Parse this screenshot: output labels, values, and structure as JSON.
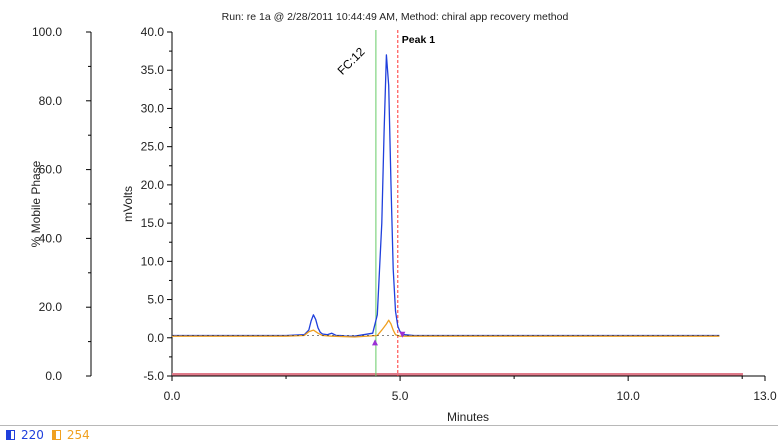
{
  "chart_data": {
    "type": "line",
    "title": "Run: re 1a @ 2/28/2011 10:44:49 AM, Method: chiral app recovery method",
    "xlabel": "Minutes",
    "ylabel": "mVolts",
    "y2label": "% Mobile Phase",
    "xlim": [
      0.0,
      13.0
    ],
    "ylim": [
      -5.0,
      40.0
    ],
    "y2lim": [
      0.0,
      100.0
    ],
    "x_ticks": [
      "0.0",
      "5.0",
      "10.0",
      "13.0"
    ],
    "y_ticks": [
      "-5.0",
      "0.0",
      "5.0",
      "10.0",
      "15.0",
      "20.0",
      "25.0",
      "30.0",
      "35.0",
      "40.0"
    ],
    "y2_ticks": [
      "0.0",
      "20.0",
      "40.0",
      "60.0",
      "80.0",
      "100.0"
    ],
    "series": [
      {
        "name": "220",
        "color": "#1f3fdc",
        "x": [
          0.0,
          1.5,
          2.5,
          2.9,
          3.0,
          3.05,
          3.1,
          3.15,
          3.2,
          3.25,
          3.3,
          3.4,
          3.5,
          3.6,
          3.7,
          3.8,
          4.0,
          4.4,
          4.5,
          4.6,
          4.65,
          4.7,
          4.75,
          4.8,
          4.85,
          4.9,
          4.95,
          5.0,
          5.1,
          5.3,
          7.0,
          10.0,
          12.0
        ],
        "y": [
          0.3,
          0.3,
          0.3,
          0.4,
          1.0,
          2.2,
          3.0,
          2.4,
          1.3,
          0.7,
          0.5,
          0.4,
          0.6,
          0.3,
          0.3,
          0.2,
          0.2,
          0.6,
          3.0,
          15.0,
          27.0,
          37.0,
          33.0,
          20.0,
          9.0,
          3.5,
          1.5,
          0.8,
          0.4,
          0.3,
          0.3,
          0.3,
          0.3
        ]
      },
      {
        "name": "254",
        "color": "#f0a020",
        "x": [
          0.0,
          1.5,
          2.5,
          2.9,
          3.0,
          3.1,
          3.2,
          3.3,
          3.5,
          4.0,
          4.5,
          4.6,
          4.7,
          4.75,
          4.8,
          4.85,
          4.9,
          5.0,
          5.3,
          7.0,
          12.0
        ],
        "y": [
          0.2,
          0.2,
          0.2,
          0.3,
          0.8,
          1.0,
          0.6,
          0.3,
          0.2,
          0.1,
          0.3,
          1.0,
          1.8,
          2.3,
          1.8,
          1.0,
          0.4,
          0.2,
          0.2,
          0.2,
          0.2
        ]
      }
    ],
    "mobile_phase": {
      "y2": 0.5,
      "color": "#e07a8a"
    },
    "markers": [
      {
        "label": "FC:12",
        "x": 4.47,
        "color": "#66cc66",
        "style": "solid"
      },
      {
        "label": "Peak 1",
        "x": 4.95,
        "color": "#ff3333",
        "style": "dashed"
      }
    ],
    "baseline_triangles": [
      {
        "x": 4.45,
        "y": -0.6
      },
      {
        "x": 5.05,
        "y": 0.4
      }
    ],
    "grid": false,
    "legend": "bottom-left"
  }
}
